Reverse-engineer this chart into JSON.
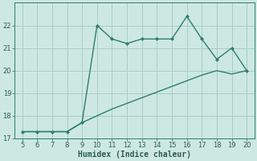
{
  "xlabel": "Humidex (Indice chaleur)",
  "x": [
    5,
    6,
    7,
    8,
    9,
    10,
    11,
    12,
    13,
    14,
    15,
    16,
    17,
    18,
    19,
    20
  ],
  "y_line": [
    17.3,
    17.3,
    17.3,
    17.3,
    17.7,
    22.0,
    21.4,
    21.2,
    21.4,
    21.4,
    21.4,
    22.4,
    21.4,
    20.5,
    21.0,
    20.0
  ],
  "y_trend": [
    17.3,
    17.3,
    17.3,
    17.3,
    17.7,
    18.0,
    18.3,
    18.55,
    18.8,
    19.05,
    19.3,
    19.55,
    19.8,
    20.0,
    19.85,
    20.0
  ],
  "line_color": "#2e7d6e",
  "bg_color": "#cde8e2",
  "grid_color": "#a8cdc6",
  "text_color": "#2e5c50",
  "ylim": [
    17,
    23
  ],
  "xlim": [
    4.5,
    20.5
  ],
  "yticks": [
    17,
    18,
    19,
    20,
    21,
    22
  ],
  "xticks": [
    5,
    6,
    7,
    8,
    9,
    10,
    11,
    12,
    13,
    14,
    15,
    16,
    17,
    18,
    19,
    20
  ]
}
